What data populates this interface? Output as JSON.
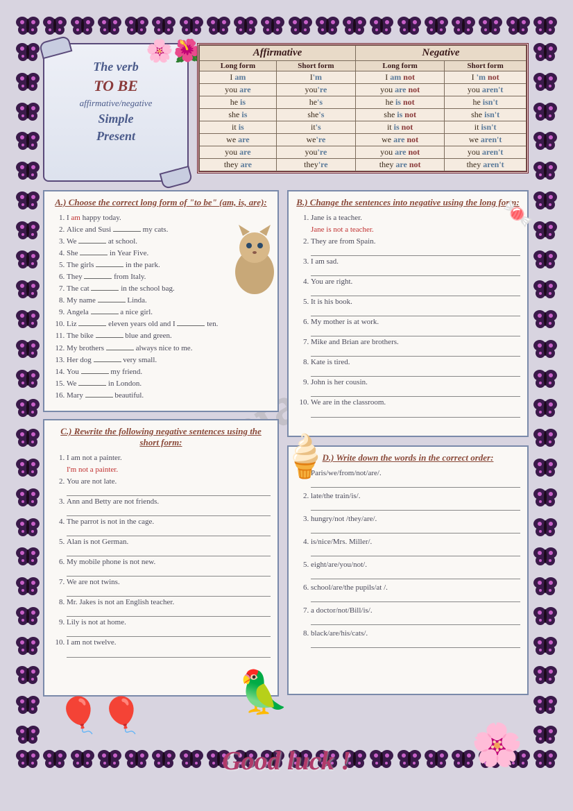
{
  "title": {
    "line1": "The verb",
    "main": "TO BE",
    "sub1": "affirmative/negative",
    "sub2": "Simple",
    "sub3": "Present"
  },
  "table": {
    "groups": [
      "Affirmative",
      "Negative"
    ],
    "subheads": [
      "Long form",
      "Short form",
      "Long form",
      "Short form"
    ],
    "rows": [
      {
        "p": "I",
        "a": "am",
        "as": "'m",
        "n": "am",
        "ns": "'m"
      },
      {
        "p": "you",
        "a": "are",
        "as": "'re",
        "n": "are",
        "ns": "aren't"
      },
      {
        "p": "he",
        "a": "is",
        "as": "'s",
        "n": "is",
        "ns": "isn't"
      },
      {
        "p": "she",
        "a": "is",
        "as": "'s",
        "n": "is",
        "ns": "isn't"
      },
      {
        "p": "it",
        "a": "is",
        "as": "'s",
        "n": "is",
        "ns": "isn't"
      },
      {
        "p": "we",
        "a": "are",
        "as": "'re",
        "n": "are",
        "ns": "aren't"
      },
      {
        "p": "you",
        "a": "are",
        "as": "'re",
        "n": "are",
        "ns": "aren't"
      },
      {
        "p": "they",
        "a": "are",
        "as": "'re",
        "n": "are",
        "ns": "aren't"
      }
    ]
  },
  "exA": {
    "title": "A.) Choose the correct long form of \"to be\" (am, is, are):",
    "items": [
      "I <ans>am</ans> happy today.",
      "Alice and Susi <blank></blank> my cats.",
      "We <blank></blank> at school.",
      "She <blank></blank> in Year Five.",
      "The girls <blank></blank> in the park.",
      "They <blank></blank> from Italy.",
      "The cat <blank></blank> in the school bag.",
      "My name <blank></blank> Linda.",
      "Angela <blank></blank> a nice girl.",
      "Liz <blank></blank> eleven years old and I <blank></blank> ten.",
      "The bike <blank></blank> blue and green.",
      "My brothers <blank></blank> always nice to me.",
      "Her dog <blank></blank> very small.",
      "You <blank></blank> my friend.",
      "We <blank></blank> in London.",
      "Mary <blank></blank> beautiful."
    ]
  },
  "exB": {
    "title": "B.) Change the sentences into negative using the long form:",
    "items": [
      {
        "q": "Jane is a teacher.",
        "a": "Jane is not a teacher."
      },
      {
        "q": "They are from Spain."
      },
      {
        "q": "I am sad."
      },
      {
        "q": "You are right."
      },
      {
        "q": "It is his book."
      },
      {
        "q": "My mother is at work."
      },
      {
        "q": "Mike and Brian are brothers."
      },
      {
        "q": "Kate is tired."
      },
      {
        "q": "John is her cousin."
      },
      {
        "q": "We are in the classroom."
      }
    ]
  },
  "exC": {
    "title": "C.) Rewrite the following negative sentences using the short form:",
    "items": [
      {
        "q": "I am not a painter.",
        "a": "I'm not a painter."
      },
      {
        "q": "You are not late."
      },
      {
        "q": "Ann and Betty are not friends."
      },
      {
        "q": "The parrot is not in the cage."
      },
      {
        "q": "Alan is not German."
      },
      {
        "q": "My mobile phone is not new."
      },
      {
        "q": "We are not twins."
      },
      {
        "q": "Mr. Jakes is not an English teacher."
      },
      {
        "q": "Lily is not at home."
      },
      {
        "q": "I am not twelve."
      }
    ]
  },
  "exD": {
    "title": "D.) Write down the words in the correct order:",
    "items": [
      "Paris/we/from/not/are/.",
      "late/the train/is/.",
      "hungry/not /they/are/.",
      "is/nice/Mrs. Miller/.",
      "eight/are/you/not/.",
      "school/are/the pupils/at /.",
      "a doctor/not/Bill/is/.",
      "black/are/his/cats/."
    ]
  },
  "footer": "Good  luck  !",
  "watermark": "ESLprintables.com",
  "colors": {
    "page_bg": "#d8d4e0",
    "box_border": "#7a8aaa",
    "title_text": "#8a4a3a",
    "verb_color": "#5a7a9a",
    "neg_color": "#8a3a3a",
    "answer_color": "#c03030",
    "scroll_text": "#4a5a8a",
    "goodluck": "#b03a6a"
  },
  "butterfly_svg_colors": {
    "wing": "#3a1a4a",
    "spot": "#c860c8",
    "body": "#1a0a1a"
  },
  "border_counts": {
    "horizontal": 20,
    "vertical": 24
  }
}
